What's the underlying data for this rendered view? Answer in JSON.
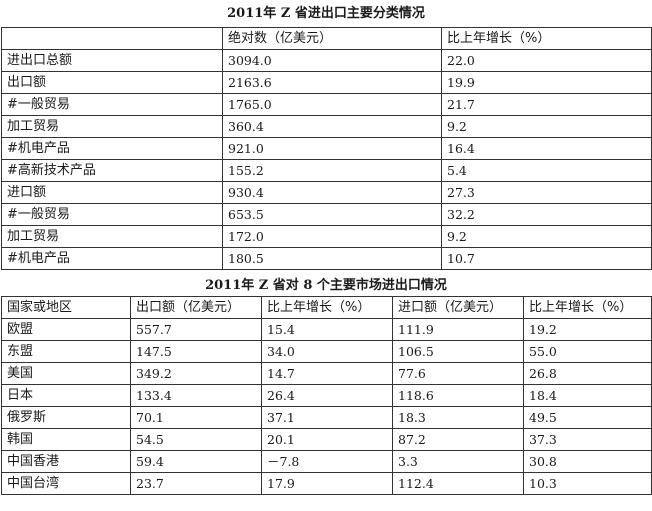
{
  "table1": {
    "title": "2011年 Z 省进出口主要分类情况",
    "headers": [
      "",
      "绝对数（亿美元）",
      "比上年增长（%）"
    ],
    "rows": [
      {
        "label": "进出口总额",
        "value": "3094.0",
        "growth": "22.0"
      },
      {
        "label": "出口额",
        "value": "2163.6",
        "growth": "19.9"
      },
      {
        "label": "#一般贸易",
        "value": "1765.0",
        "growth": "21.7"
      },
      {
        "label": "加工贸易",
        "value": "360.4",
        "growth": "9.2"
      },
      {
        "label": "#机电产品",
        "value": "921.0",
        "growth": "16.4"
      },
      {
        "label": "#高新技术产品",
        "value": "155.2",
        "growth": "5.4"
      },
      {
        "label": "进口额",
        "value": "930.4",
        "growth": "27.3"
      },
      {
        "label": "#一般贸易",
        "value": "653.5",
        "growth": "32.2"
      },
      {
        "label": "加工贸易",
        "value": "172.0",
        "growth": "9.2"
      },
      {
        "label": "#机电产品",
        "value": "180.5",
        "growth": "10.7"
      }
    ]
  },
  "table2": {
    "title": "2011年 Z 省对 8 个主要市场进出口情况",
    "headers": [
      "国家或地区",
      "出口额（亿美元）",
      "比上年增长（%）",
      "进口额（亿美元）",
      "比上年增长（%）"
    ],
    "rows": [
      {
        "region": "欧盟",
        "export": "557.7",
        "export_growth": "15.4",
        "import": "111.9",
        "import_growth": "19.2"
      },
      {
        "region": "东盟",
        "export": "147.5",
        "export_growth": "34.0",
        "import": "106.5",
        "import_growth": "55.0"
      },
      {
        "region": "美国",
        "export": "349.2",
        "export_growth": "14.7",
        "import": "77.6",
        "import_growth": "26.8"
      },
      {
        "region": "日本",
        "export": "133.4",
        "export_growth": "26.4",
        "import": "118.6",
        "import_growth": "18.4"
      },
      {
        "region": "俄罗斯",
        "export": "70.1",
        "export_growth": "37.1",
        "import": "18.3",
        "import_growth": "49.5"
      },
      {
        "region": "韩国",
        "export": "54.5",
        "export_growth": "20.1",
        "import": "87.2",
        "import_growth": "37.3"
      },
      {
        "region": "中国香港",
        "export": "59.4",
        "export_growth": "－7.8",
        "import": "3.3",
        "import_growth": "30.8"
      },
      {
        "region": "中国台湾",
        "export": "23.7",
        "export_growth": "17.9",
        "import": "112.4",
        "import_growth": "10.3"
      }
    ]
  }
}
